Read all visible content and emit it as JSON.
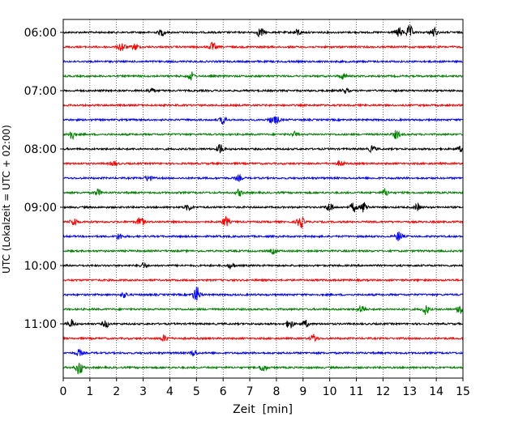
{
  "chart_data": {
    "type": "line",
    "title": "",
    "xlabel": "Zeit  [min]",
    "ylabel": "UTC (Lokalzeit = UTC + 02:00)",
    "xlim": [
      0,
      15
    ],
    "x_ticks": [
      "0",
      "1",
      "2",
      "3",
      "4",
      "5",
      "6",
      "7",
      "8",
      "9",
      "10",
      "11",
      "12",
      "13",
      "14",
      "15"
    ],
    "y_tick_labels": [
      "06:00",
      "07:00",
      "08:00",
      "09:00",
      "10:00",
      "11:00"
    ],
    "grid": "vertical dotted at each minute",
    "colors": [
      "#000000",
      "#ff0000",
      "#0000ff",
      "#008000"
    ],
    "series": [
      {
        "start": "06:00",
        "color": "#000000",
        "events": [
          [
            3.7,
            4
          ],
          [
            7.4,
            6
          ],
          [
            8.8,
            4
          ],
          [
            12.6,
            6
          ],
          [
            13.0,
            8
          ],
          [
            13.9,
            6
          ]
        ]
      },
      {
        "start": "06:15",
        "color": "#ff0000",
        "events": [
          [
            2.2,
            6
          ],
          [
            2.7,
            4
          ],
          [
            5.6,
            5
          ]
        ]
      },
      {
        "start": "06:30",
        "color": "#0000ff",
        "events": []
      },
      {
        "start": "06:45",
        "color": "#008000",
        "events": [
          [
            4.8,
            5
          ],
          [
            10.5,
            3
          ]
        ]
      },
      {
        "start": "07:00",
        "color": "#000000",
        "events": [
          [
            3.3,
            3
          ],
          [
            10.6,
            3
          ]
        ]
      },
      {
        "start": "07:15",
        "color": "#ff0000",
        "events": []
      },
      {
        "start": "07:30",
        "color": "#0000ff",
        "events": [
          [
            6.0,
            5
          ],
          [
            7.8,
            3
          ],
          [
            8.0,
            4
          ]
        ]
      },
      {
        "start": "07:45",
        "color": "#008000",
        "events": [
          [
            0.3,
            6
          ],
          [
            8.7,
            3
          ],
          [
            12.5,
            5
          ]
        ]
      },
      {
        "start": "08:00",
        "color": "#000000",
        "events": [
          [
            5.9,
            6
          ],
          [
            11.6,
            4
          ],
          [
            14.9,
            3
          ]
        ]
      },
      {
        "start": "08:15",
        "color": "#ff0000",
        "events": [
          [
            1.9,
            3
          ],
          [
            10.4,
            3
          ]
        ]
      },
      {
        "start": "08:30",
        "color": "#0000ff",
        "events": [
          [
            3.2,
            4
          ],
          [
            6.6,
            3
          ]
        ]
      },
      {
        "start": "08:45",
        "color": "#008000",
        "events": [
          [
            1.3,
            4
          ],
          [
            6.6,
            4
          ],
          [
            12.1,
            4
          ]
        ]
      },
      {
        "start": "09:00",
        "color": "#000000",
        "events": [
          [
            4.7,
            4
          ],
          [
            10.0,
            6
          ],
          [
            10.9,
            6
          ],
          [
            11.3,
            7
          ],
          [
            13.3,
            4
          ]
        ]
      },
      {
        "start": "09:15",
        "color": "#ff0000",
        "events": [
          [
            0.4,
            5
          ],
          [
            2.9,
            6
          ],
          [
            6.1,
            6
          ],
          [
            8.9,
            8
          ]
        ]
      },
      {
        "start": "09:30",
        "color": "#0000ff",
        "events": [
          [
            2.1,
            4
          ],
          [
            12.6,
            6
          ]
        ]
      },
      {
        "start": "09:45",
        "color": "#008000",
        "events": [
          [
            7.9,
            3
          ]
        ]
      },
      {
        "start": "10:00",
        "color": "#000000",
        "events": [
          [
            3.0,
            3
          ],
          [
            6.3,
            3
          ]
        ]
      },
      {
        "start": "10:15",
        "color": "#ff0000",
        "events": []
      },
      {
        "start": "10:30",
        "color": "#0000ff",
        "events": [
          [
            2.3,
            3
          ],
          [
            5.0,
            10
          ]
        ]
      },
      {
        "start": "10:45",
        "color": "#008000",
        "events": [
          [
            11.2,
            5
          ],
          [
            13.6,
            6
          ],
          [
            14.9,
            7
          ]
        ]
      },
      {
        "start": "11:00",
        "color": "#000000",
        "events": [
          [
            0.3,
            5
          ],
          [
            1.6,
            4
          ],
          [
            8.5,
            6
          ],
          [
            9.1,
            4
          ]
        ]
      },
      {
        "start": "11:15",
        "color": "#ff0000",
        "events": [
          [
            3.8,
            4
          ],
          [
            9.4,
            5
          ]
        ]
      },
      {
        "start": "11:30",
        "color": "#0000ff",
        "events": [
          [
            0.6,
            4
          ],
          [
            4.9,
            4
          ]
        ]
      },
      {
        "start": "11:45",
        "color": "#008000",
        "events": [
          [
            0.6,
            9
          ],
          [
            7.5,
            5
          ]
        ]
      }
    ]
  }
}
